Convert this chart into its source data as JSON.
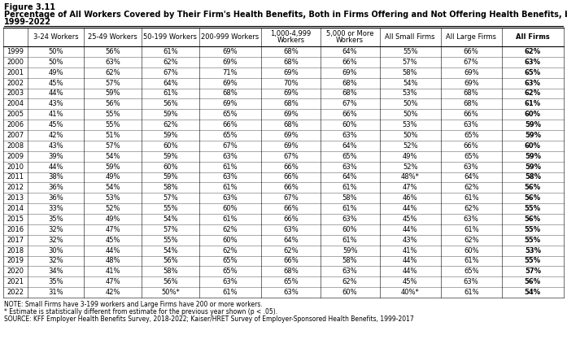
{
  "figure_label": "Figure 3.11",
  "title_line1": "Percentage of All Workers Covered by Their Firm's Health Benefits, Both in Firms Offering and Not Offering Health Benefits, by Firm Size,",
  "title_line2": "1999-2022",
  "col_headers": [
    "3-24 Workers",
    "25-49 Workers",
    "50-199 Workers",
    "200-999 Workers",
    "1,000-4,999\nWorkers",
    "5,000 or More\nWorkers",
    "All Small Firms",
    "All Large Firms",
    "All Firms"
  ],
  "years": [
    1999,
    2000,
    2001,
    2002,
    2003,
    2004,
    2005,
    2006,
    2007,
    2008,
    2009,
    2010,
    2011,
    2012,
    2013,
    2014,
    2015,
    2016,
    2017,
    2018,
    2019,
    2020,
    2021,
    2022
  ],
  "data": [
    [
      "50%",
      "56%",
      "61%",
      "69%",
      "68%",
      "64%",
      "55%",
      "66%",
      "62%"
    ],
    [
      "50%",
      "63%",
      "62%",
      "69%",
      "68%",
      "66%",
      "57%",
      "67%",
      "63%"
    ],
    [
      "49%",
      "62%",
      "67%",
      "71%",
      "69%",
      "69%",
      "58%",
      "69%",
      "65%"
    ],
    [
      "45%",
      "57%",
      "64%",
      "69%",
      "70%",
      "68%",
      "54%",
      "69%",
      "63%"
    ],
    [
      "44%",
      "59%",
      "61%",
      "68%",
      "69%",
      "68%",
      "53%",
      "68%",
      "62%"
    ],
    [
      "43%",
      "56%",
      "56%",
      "69%",
      "68%",
      "67%",
      "50%",
      "68%",
      "61%"
    ],
    [
      "41%",
      "55%",
      "59%",
      "65%",
      "69%",
      "66%",
      "50%",
      "66%",
      "60%"
    ],
    [
      "45%",
      "55%",
      "62%",
      "66%",
      "68%",
      "60%",
      "53%",
      "63%",
      "59%"
    ],
    [
      "42%",
      "51%",
      "59%",
      "65%",
      "69%",
      "63%",
      "50%",
      "65%",
      "59%"
    ],
    [
      "43%",
      "57%",
      "60%",
      "67%",
      "69%",
      "64%",
      "52%",
      "66%",
      "60%"
    ],
    [
      "39%",
      "54%",
      "59%",
      "63%",
      "67%",
      "65%",
      "49%",
      "65%",
      "59%"
    ],
    [
      "44%",
      "59%",
      "60%",
      "61%",
      "66%",
      "63%",
      "52%",
      "63%",
      "59%"
    ],
    [
      "38%",
      "49%",
      "59%",
      "63%",
      "66%",
      "64%",
      "48%*",
      "64%",
      "58%"
    ],
    [
      "36%",
      "54%",
      "58%",
      "61%",
      "66%",
      "61%",
      "47%",
      "62%",
      "56%"
    ],
    [
      "36%",
      "53%",
      "57%",
      "63%",
      "67%",
      "58%",
      "46%",
      "61%",
      "56%"
    ],
    [
      "33%",
      "52%",
      "55%",
      "60%",
      "66%",
      "61%",
      "44%",
      "62%",
      "55%"
    ],
    [
      "35%",
      "49%",
      "54%",
      "61%",
      "66%",
      "63%",
      "45%",
      "63%",
      "56%"
    ],
    [
      "32%",
      "47%",
      "57%",
      "62%",
      "63%",
      "60%",
      "44%",
      "61%",
      "55%"
    ],
    [
      "32%",
      "45%",
      "55%",
      "60%",
      "64%",
      "61%",
      "43%",
      "62%",
      "55%"
    ],
    [
      "30%",
      "44%",
      "54%",
      "62%",
      "62%",
      "59%",
      "41%",
      "60%",
      "53%"
    ],
    [
      "32%",
      "48%",
      "56%",
      "65%",
      "66%",
      "58%",
      "44%",
      "61%",
      "55%"
    ],
    [
      "34%",
      "41%",
      "58%",
      "65%",
      "68%",
      "63%",
      "44%",
      "65%",
      "57%"
    ],
    [
      "35%",
      "47%",
      "56%",
      "63%",
      "65%",
      "62%",
      "45%",
      "63%",
      "56%"
    ],
    [
      "31%",
      "42%",
      "50%*",
      "61%",
      "63%",
      "60%",
      "40%*",
      "61%",
      "54%"
    ]
  ],
  "note1": "NOTE: Small Firms have 3-199 workers and Large Firms have 200 or more workers.",
  "note2": "* Estimate is statistically different from estimate for the previous year shown (p < .05).",
  "source": "SOURCE: KFF Employer Health Benefits Survey, 2018-2022; Kaiser/HRET Survey of Employer-Sponsored Health Benefits, 1999-2017",
  "bg_color": "#ffffff",
  "line_color": "#000000",
  "title_fontsize": 7.0,
  "header_fontsize": 6.0,
  "cell_fontsize": 6.0,
  "note_fontsize": 5.5
}
